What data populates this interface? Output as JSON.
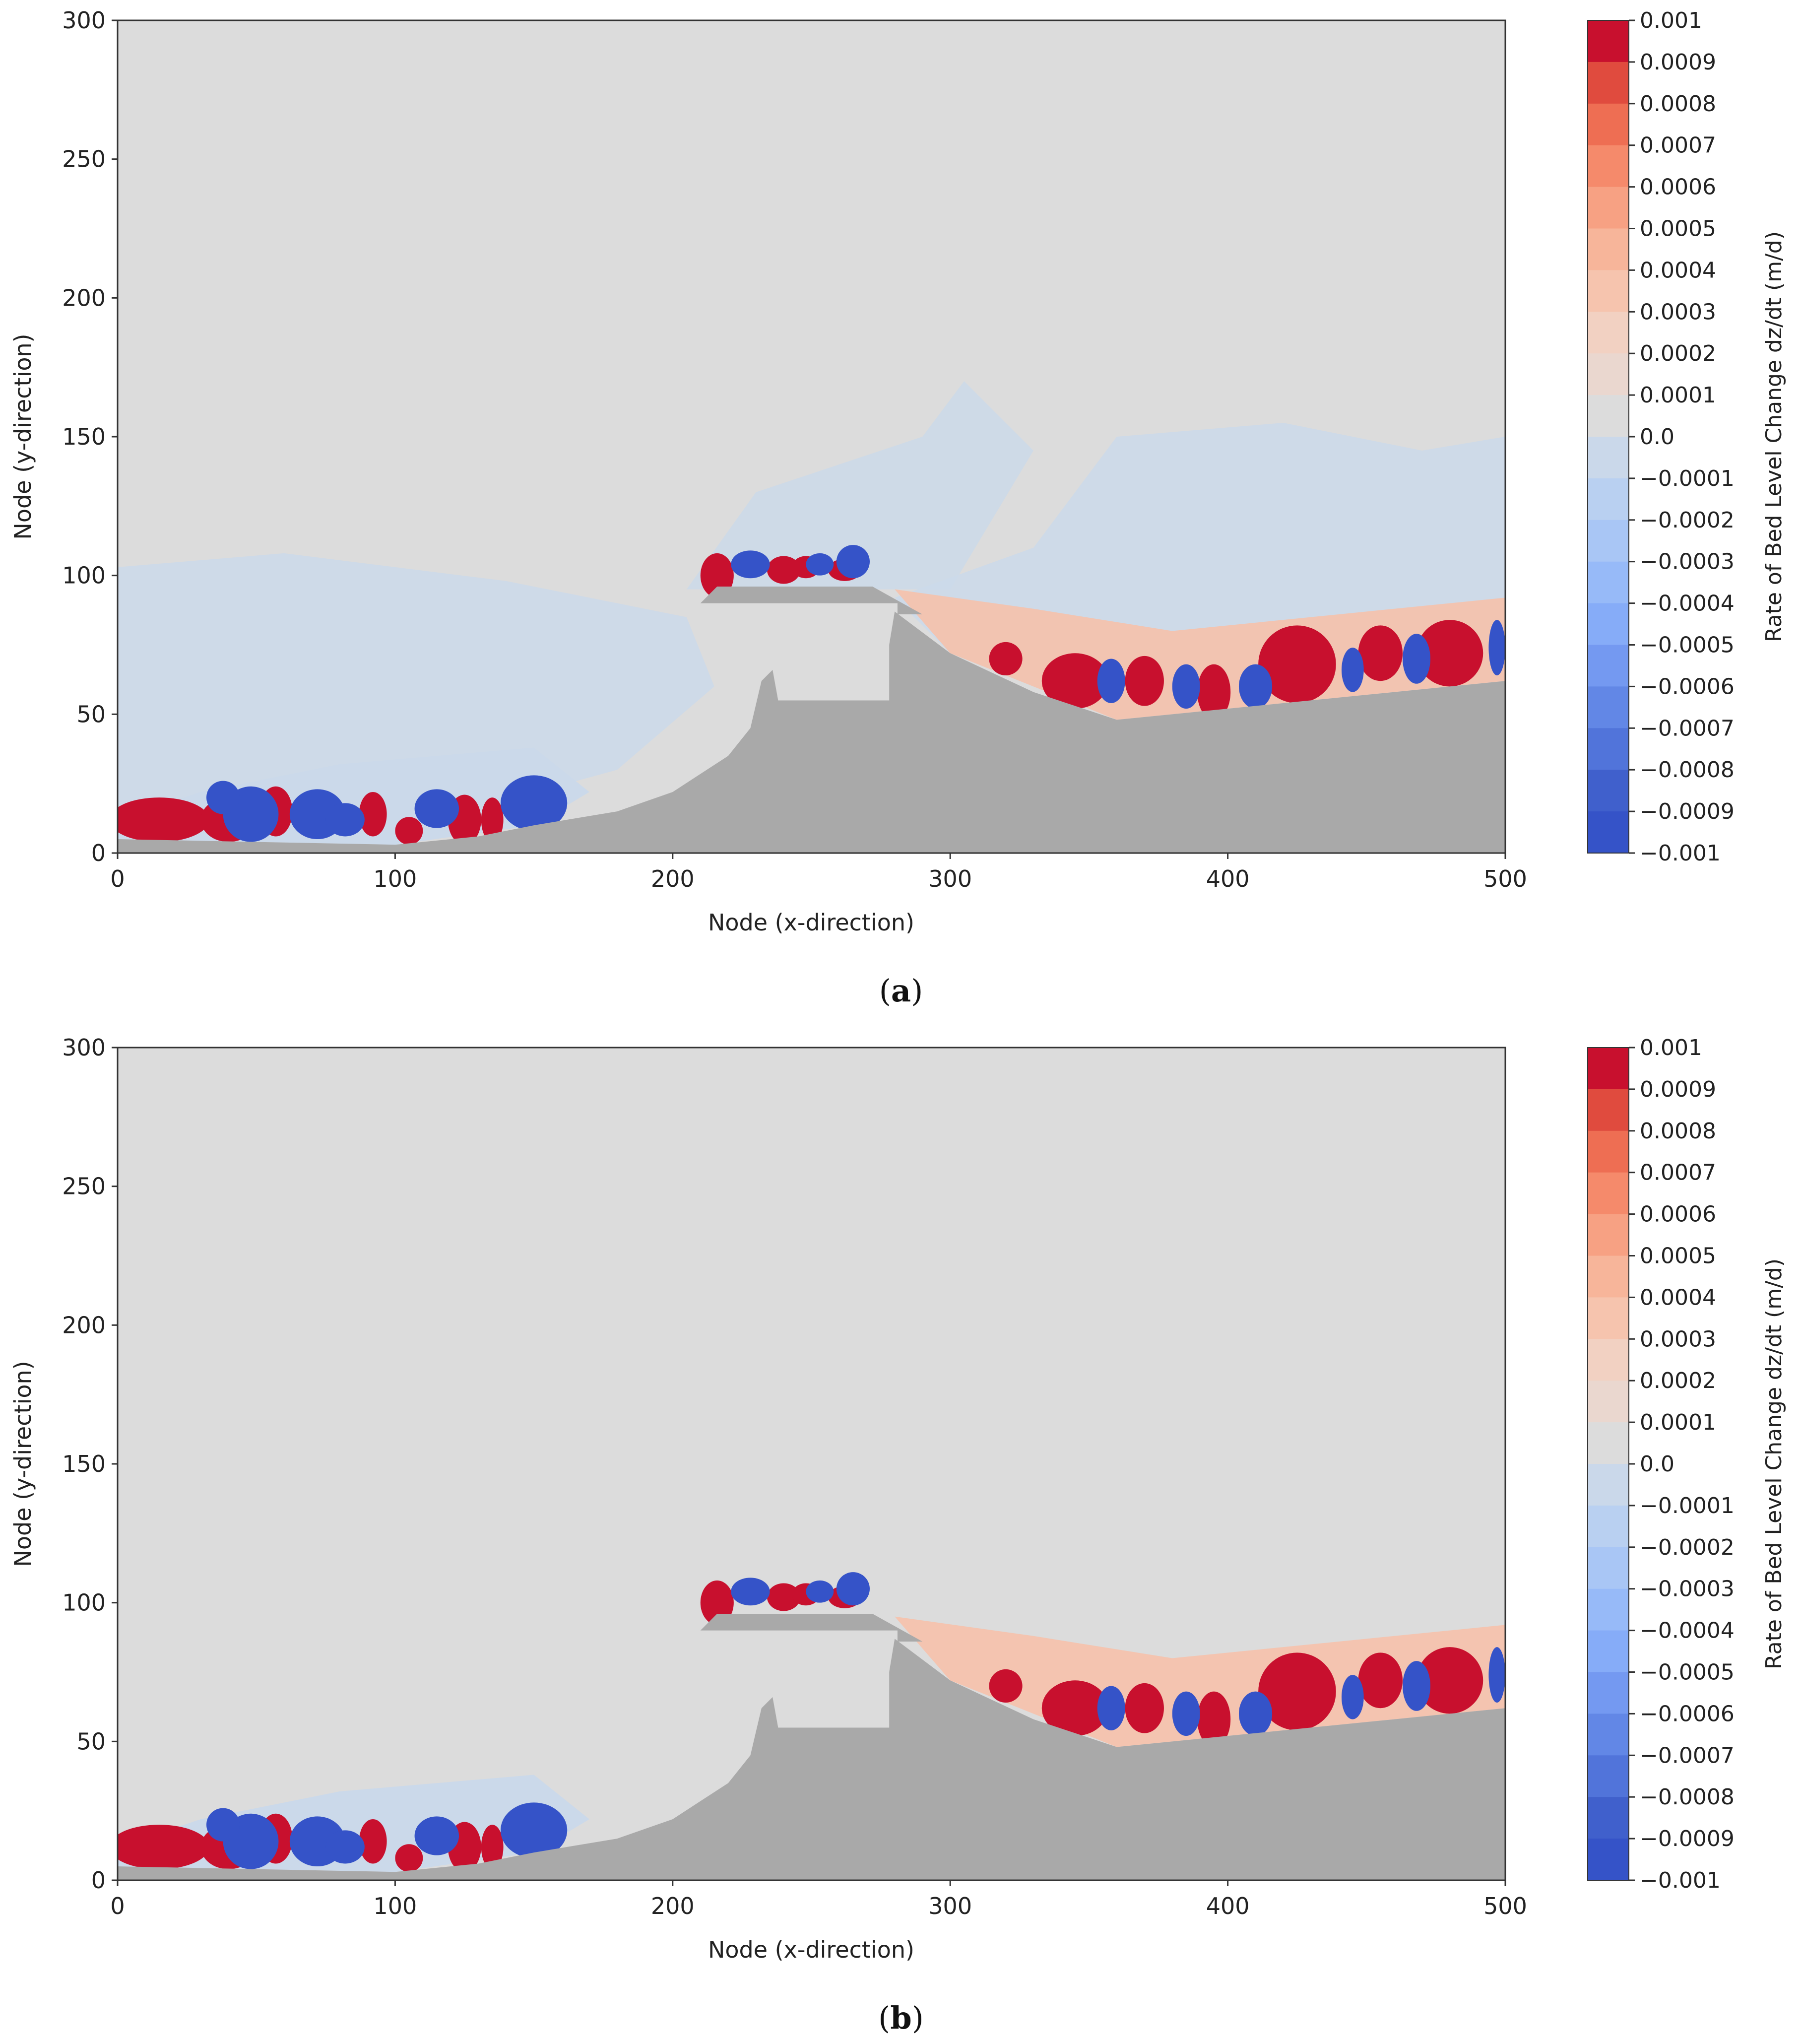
{
  "chart_data": [
    {
      "type": "heatmap",
      "panel_label": "a",
      "xlabel": "Node (x-direction)",
      "ylabel": "Node (y-direction)",
      "xlim": [
        0,
        500
      ],
      "ylim": [
        0,
        300
      ],
      "xticks": [
        "0",
        "100",
        "200",
        "300",
        "400",
        "500"
      ],
      "yticks": [
        "0",
        "50",
        "100",
        "150",
        "200",
        "250",
        "300"
      ],
      "colorbar": {
        "label": "Rate of Bed Level Change dz/dt (m/d)",
        "range": [
          -0.001,
          0.001
        ],
        "ticks": [
          "0.001",
          "0.0009",
          "0.0008",
          "0.0007",
          "0.0006",
          "0.0005",
          "0.0004",
          "0.0003",
          "0.0002",
          "0.0001",
          "0.0",
          "−0.0001",
          "−0.0002",
          "−0.0003",
          "−0.0004",
          "−0.0005",
          "−0.0006",
          "−0.0007",
          "−0.0008",
          "−0.0009",
          "−0.001"
        ]
      },
      "land_boundary": [
        [
          0,
          5
        ],
        [
          100,
          3
        ],
        [
          130,
          6
        ],
        [
          150,
          10
        ],
        [
          180,
          15
        ],
        [
          200,
          22
        ],
        [
          220,
          35
        ],
        [
          228,
          45
        ],
        [
          232,
          62
        ],
        [
          236,
          66
        ],
        [
          238,
          55
        ],
        [
          278,
          55
        ],
        [
          278,
          75
        ],
        [
          280,
          87
        ],
        [
          300,
          72
        ],
        [
          330,
          58
        ],
        [
          360,
          48
        ],
        [
          400,
          52
        ],
        [
          450,
          57
        ],
        [
          500,
          62
        ]
      ],
      "breakwater": [
        [
          210,
          90
        ],
        [
          216,
          96
        ],
        [
          272,
          96
        ],
        [
          290,
          86
        ],
        [
          281,
          86
        ],
        [
          281,
          90
        ]
      ],
      "water_boundary": [
        [
          0,
          5
        ],
        [
          500,
          62
        ]
      ]
    },
    {
      "type": "heatmap",
      "panel_label": "b",
      "xlabel": "Node (x-direction)",
      "ylabel": "Node (y-direction)",
      "xlim": [
        0,
        500
      ],
      "ylim": [
        0,
        300
      ],
      "xticks": [
        "0",
        "100",
        "200",
        "300",
        "400",
        "500"
      ],
      "yticks": [
        "0",
        "50",
        "100",
        "150",
        "200",
        "250",
        "300"
      ],
      "colorbar": {
        "label": "Rate of Bed Level Change dz/dt (m/d)",
        "range": [
          -0.001,
          0.001
        ],
        "ticks": [
          "0.001",
          "0.0009",
          "0.0008",
          "0.0007",
          "0.0006",
          "0.0005",
          "0.0004",
          "0.0003",
          "0.0002",
          "0.0001",
          "0.0",
          "−0.0001",
          "−0.0002",
          "−0.0003",
          "−0.0004",
          "−0.0005",
          "−0.0006",
          "−0.0007",
          "−0.0008",
          "−0.0009",
          "−0.001"
        ]
      },
      "land_boundary": [
        [
          0,
          5
        ],
        [
          100,
          3
        ],
        [
          130,
          6
        ],
        [
          150,
          10
        ],
        [
          180,
          15
        ],
        [
          200,
          22
        ],
        [
          220,
          35
        ],
        [
          228,
          45
        ],
        [
          232,
          62
        ],
        [
          236,
          66
        ],
        [
          238,
          55
        ],
        [
          278,
          55
        ],
        [
          278,
          75
        ],
        [
          280,
          87
        ],
        [
          300,
          72
        ],
        [
          330,
          58
        ],
        [
          360,
          48
        ],
        [
          400,
          52
        ],
        [
          450,
          57
        ],
        [
          500,
          62
        ]
      ],
      "breakwater": [
        [
          210,
          90
        ],
        [
          216,
          96
        ],
        [
          272,
          96
        ],
        [
          290,
          86
        ],
        [
          281,
          86
        ],
        [
          281,
          90
        ]
      ],
      "water_boundary": [
        [
          0,
          5
        ],
        [
          500,
          62
        ]
      ]
    }
  ],
  "colors": {
    "neutral": "#dcdcdc",
    "land": "#a9a9a9",
    "red_strong": "#c8102e",
    "blue_strong": "#3553c8",
    "light_blue": "#cbd9ea",
    "light_red": "#f6c1ab"
  },
  "colorbar_colors": [
    "#c8102e",
    "#e04b3e",
    "#ee6e53",
    "#f58a6b",
    "#f7a183",
    "#f7b59a",
    "#f6c4ae",
    "#f2d1c2",
    "#ead7cf",
    "#dcdcdc",
    "#cad8ea",
    "#b9d0f1",
    "#a9c6f5",
    "#97baf8",
    "#86acf8",
    "#7499f1",
    "#6287e6",
    "#5174da",
    "#4060cc",
    "#3553c8"
  ]
}
